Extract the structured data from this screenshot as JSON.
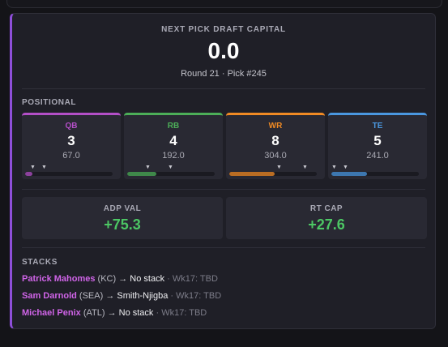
{
  "header": {
    "label": "NEXT PICK DRAFT CAPITAL",
    "value": "0.0",
    "sub": "Round 21 · Pick #245"
  },
  "positional": {
    "label": "POSITIONAL",
    "items": [
      {
        "name": "QB",
        "count": "3",
        "points": "67.0",
        "color": "#b34fc7",
        "fill_fraction": 0.08
      },
      {
        "name": "RB",
        "count": "4",
        "points": "192.0",
        "color": "#4cae58",
        "fill_fraction": 0.33
      },
      {
        "name": "WR",
        "count": "8",
        "points": "304.0",
        "color": "#f08a24",
        "fill_fraction": 0.52
      },
      {
        "name": "TE",
        "count": "5",
        "points": "241.0",
        "color": "#4a97e0",
        "fill_fraction": 0.41
      }
    ]
  },
  "values": [
    {
      "label": "ADP VAL",
      "value": "+75.3"
    },
    {
      "label": "RT CAP",
      "value": "+27.6"
    }
  ],
  "stacks": {
    "label": "STACKS",
    "rows": [
      {
        "player": "Patrick Mahomes",
        "team": " (KC) ",
        "arrow": "→",
        "target": " No stack",
        "meta": " · Wk17: TBD"
      },
      {
        "player": "Sam Darnold",
        "team": " (SEA) ",
        "arrow": "→",
        "target": " Smith-Njigba",
        "meta": " · Wk17: TBD"
      },
      {
        "player": "Michael Penix",
        "team": " (ATL) ",
        "arrow": "→",
        "target": " No stack",
        "meta": " · Wk17: TBD"
      }
    ]
  }
}
